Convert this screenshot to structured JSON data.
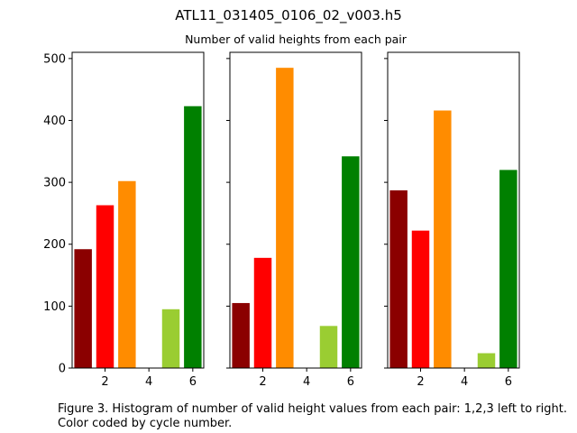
{
  "figure": {
    "suptitle": "ATL11_031405_0106_02_v003.h5",
    "caption": "Figure 3. Histogram of number of valid height values from each pair: 1,2,3 left to right. Color coded by cycle number."
  },
  "chart_data": [
    {
      "type": "bar",
      "title": "",
      "xlabel": "",
      "ylabel": "",
      "x": [
        1,
        2,
        3,
        4,
        5,
        6
      ],
      "values": [
        192,
        263,
        302,
        0,
        95,
        423
      ],
      "colors": [
        "#8b0000",
        "#ff0000",
        "#ff8c00",
        "#ffffff",
        "#9acd32",
        "#008000"
      ],
      "xlim": [
        0.5,
        6.5
      ],
      "ylim": [
        0,
        510
      ],
      "xticks": [
        2,
        4,
        6
      ],
      "yticks": [
        0,
        100,
        200,
        300,
        400,
        500
      ],
      "show_yticklabels": true
    },
    {
      "type": "bar",
      "title": "Number of valid heights from each pair",
      "xlabel": "",
      "ylabel": "",
      "x": [
        1,
        2,
        3,
        4,
        5,
        6
      ],
      "values": [
        105,
        178,
        485,
        0,
        68,
        342
      ],
      "colors": [
        "#8b0000",
        "#ff0000",
        "#ff8c00",
        "#ffffff",
        "#9acd32",
        "#008000"
      ],
      "xlim": [
        0.5,
        6.5
      ],
      "ylim": [
        0,
        510
      ],
      "xticks": [
        2,
        4,
        6
      ],
      "yticks": [
        0,
        100,
        200,
        300,
        400,
        500
      ],
      "show_yticklabels": false
    },
    {
      "type": "bar",
      "title": "",
      "xlabel": "",
      "ylabel": "",
      "x": [
        1,
        2,
        3,
        4,
        5,
        6
      ],
      "values": [
        287,
        222,
        416,
        0,
        24,
        320
      ],
      "colors": [
        "#8b0000",
        "#ff0000",
        "#ff8c00",
        "#ffffff",
        "#9acd32",
        "#008000"
      ],
      "xlim": [
        0.5,
        6.5
      ],
      "ylim": [
        0,
        510
      ],
      "xticks": [
        2,
        4,
        6
      ],
      "yticks": [
        0,
        100,
        200,
        300,
        400,
        500
      ],
      "show_yticklabels": false
    }
  ]
}
